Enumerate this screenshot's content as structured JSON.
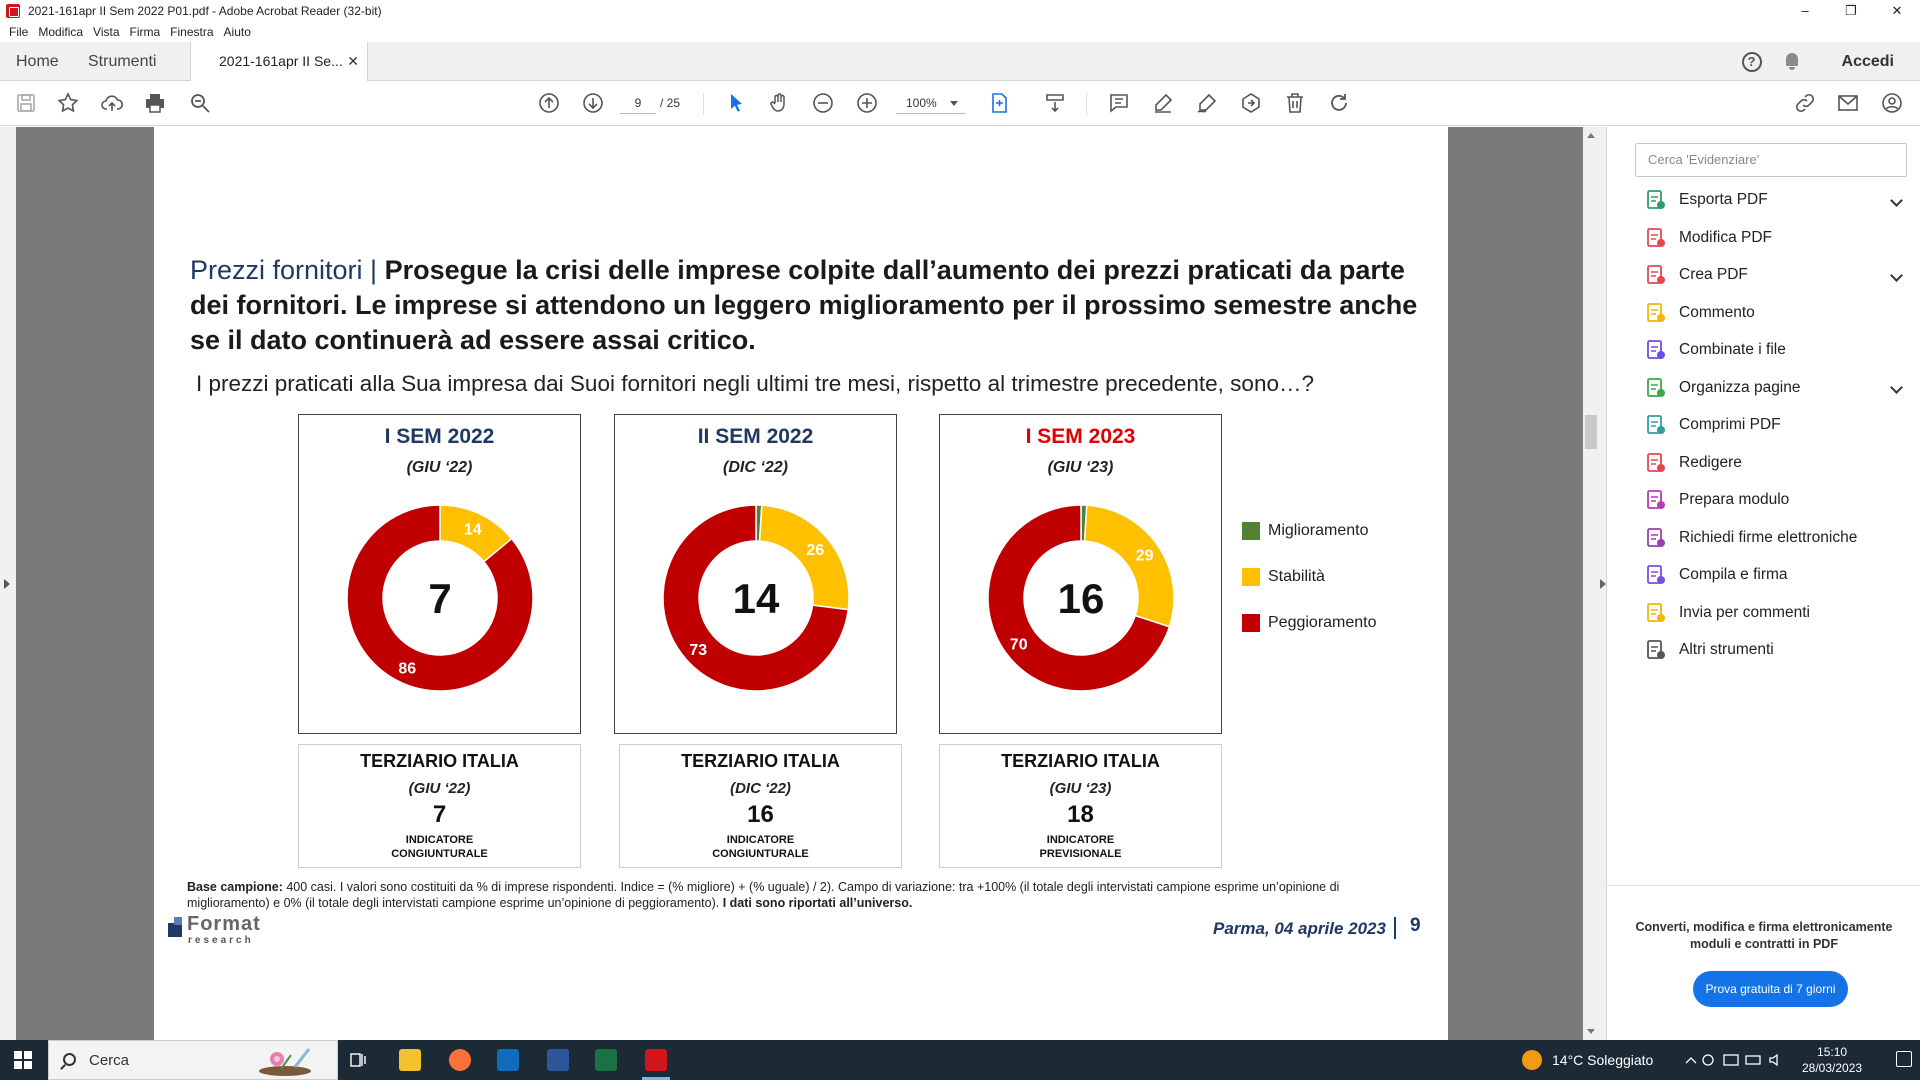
{
  "window": {
    "title": "2021-161apr II Sem 2022 P01.pdf - Adobe Acrobat Reader (32-bit)",
    "controls": {
      "minimize": "–",
      "restore": "❐",
      "close": "✕"
    }
  },
  "menu": [
    "File",
    "Modifica",
    "Vista",
    "Firma",
    "Finestra",
    "Aiuto"
  ],
  "tabs": {
    "home": "Home",
    "tools": "Strumenti",
    "doc": "2021-161apr II Se...",
    "close": "✕",
    "help": "?",
    "signin": "Accedi"
  },
  "toolbar": {
    "page_current": "9",
    "page_total": "/ 25",
    "zoom": "100%"
  },
  "page": {
    "headline_lead": "Prezzi fornitori",
    "headline_sep": " | ",
    "headline_text": "Prosegue la crisi delle imprese colpite dall’aumento dei prezzi praticati da parte dei fornitori. Le imprese si attendono un leggero miglioramento per il prossimo semestre anche se il dato continuerà ad essere assai critico.",
    "question": "I prezzi praticati alla Sua impresa dai Suoi fornitori negli ultimi tre mesi, rispetto al trimestre precedente, sono…?",
    "legend": [
      {
        "label": "Miglioramento",
        "color": "#538135"
      },
      {
        "label": "Stabilità",
        "color": "#ffc000"
      },
      {
        "label": "Peggioramento",
        "color": "#c00000"
      }
    ],
    "info_boxes": [
      {
        "title": "TERZIARIO ITALIA",
        "sub": "(GIU ‘22)",
        "value": "7",
        "label1": "INDICATORE",
        "label2": "CONGIUNTURALE"
      },
      {
        "title": "TERZIARIO ITALIA",
        "sub": "(DIC ‘22)",
        "value": "16",
        "label1": "INDICATORE",
        "label2": "CONGIUNTURALE"
      },
      {
        "title": "TERZIARIO ITALIA",
        "sub": "(GIU ‘23)",
        "value": "18",
        "label1": "INDICATORE",
        "label2": "PREVISIONALE"
      }
    ],
    "note_bold": "Base campione:",
    "note_text": " 400 casi. I valori sono costituiti da % di imprese rispondenti. Indice = (% migliore) + (% uguale) / 2). Campo di variazione: tra +100% (il totale degli intervistati campione esprime un’opinione di miglioramento) e 0% (il totale degli intervistati campione esprime un’opinione di peggioramento). ",
    "note_end": "I dati sono riportati all’universo.",
    "logo_main": "Format",
    "logo_sub": "research",
    "footer_date": "Parma,  04 aprile 2023",
    "footer_page": "9"
  },
  "chart_data": [
    {
      "type": "pie",
      "title": "I SEM 2022",
      "subtitle": "(GIU ‘22)",
      "title_color": "#1f3864",
      "center_value": "7",
      "categories": [
        "Miglioramento",
        "Stabilità",
        "Peggioramento"
      ],
      "values": [
        0,
        14,
        86
      ],
      "labels": [
        "0",
        "14",
        "86"
      ]
    },
    {
      "type": "pie",
      "title": "II SEM 2022",
      "subtitle": "(DIC ‘22)",
      "title_color": "#1f3864",
      "center_value": "14",
      "categories": [
        "Miglioramento",
        "Stabilità",
        "Peggioramento"
      ],
      "values": [
        1,
        26,
        73
      ],
      "labels": [
        "",
        "26",
        "73"
      ]
    },
    {
      "type": "pie",
      "title": "I SEM 2023",
      "subtitle": "(GIU ‘23)",
      "title_color": "#e00000",
      "center_value": "16",
      "categories": [
        "Miglioramento",
        "Stabilità",
        "Peggioramento"
      ],
      "values": [
        1,
        29,
        70
      ],
      "labels": [
        "",
        "29",
        "70"
      ]
    }
  ],
  "tools": {
    "search_placeholder": "Cerca 'Evidenziare'",
    "items": [
      {
        "label": "Esporta PDF",
        "icon": "export-pdf-icon",
        "color": "#2e9e6a",
        "chevron": true
      },
      {
        "label": "Modifica PDF",
        "icon": "edit-pdf-icon",
        "color": "#e34850",
        "chevron": false
      },
      {
        "label": "Crea PDF",
        "icon": "create-pdf-icon",
        "color": "#e34850",
        "chevron": true
      },
      {
        "label": "Commento",
        "icon": "comment-icon",
        "color": "#f2b600",
        "chevron": false
      },
      {
        "label": "Combinate i file",
        "icon": "combine-files-icon",
        "color": "#6c4de6",
        "chevron": false
      },
      {
        "label": "Organizza pagine",
        "icon": "organize-pages-icon",
        "color": "#3da74e",
        "chevron": true
      },
      {
        "label": "Comprimi PDF",
        "icon": "compress-pdf-icon",
        "color": "#2e9e9e",
        "chevron": false
      },
      {
        "label": "Redigere",
        "icon": "redact-icon",
        "color": "#e34850",
        "chevron": false
      },
      {
        "label": "Prepara modulo",
        "icon": "prepare-form-icon",
        "color": "#b03fb5",
        "chevron": false
      },
      {
        "label": "Richiedi firme elettroniche",
        "icon": "request-signature-icon",
        "color": "#9c3fb5",
        "chevron": false
      },
      {
        "label": "Compila e firma",
        "icon": "fill-sign-icon",
        "color": "#7a4de6",
        "chevron": false
      },
      {
        "label": "Invia per commenti",
        "icon": "send-comments-icon",
        "color": "#f2b600",
        "chevron": false
      },
      {
        "label": "Altri strumenti",
        "icon": "more-tools-icon",
        "color": "#555555",
        "chevron": false
      }
    ],
    "promo_line1": "Converti, modifica e firma elettronicamente",
    "promo_line2": "moduli e contratti in PDF",
    "trial_button": "Prova gratuita di 7 giorni"
  },
  "taskbar": {
    "search": "Cerca",
    "weather": "14°C  Soleggiato",
    "time": "15:10",
    "date": "28/03/2023"
  }
}
